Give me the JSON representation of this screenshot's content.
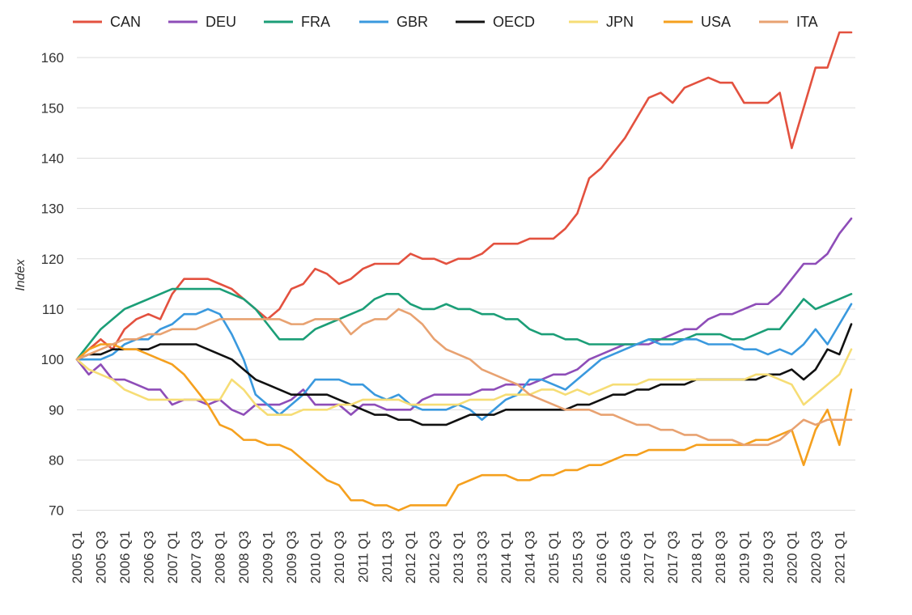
{
  "chart_data": {
    "type": "line",
    "title": "",
    "xlabel": "",
    "ylabel": "Index",
    "ylim": [
      68.5,
      165
    ],
    "yticks": [
      70,
      80,
      90,
      100,
      110,
      120,
      130,
      140,
      150,
      160
    ],
    "grid": "horizontal",
    "legend": "top",
    "x": [
      "2005 Q1",
      "2005 Q2",
      "2005 Q3",
      "2005 Q4",
      "2006 Q1",
      "2006 Q2",
      "2006 Q3",
      "2006 Q4",
      "2007 Q1",
      "2007 Q2",
      "2007 Q3",
      "2007 Q4",
      "2008 Q1",
      "2008 Q2",
      "2008 Q3",
      "2008 Q4",
      "2009 Q1",
      "2009 Q2",
      "2009 Q3",
      "2009 Q4",
      "2010 Q1",
      "2010 Q2",
      "2010 Q3",
      "2010 Q4",
      "2011 Q1",
      "2011 Q2",
      "2011 Q3",
      "2011 Q4",
      "2012 Q1",
      "2012 Q2",
      "2012 Q3",
      "2012 Q4",
      "2013 Q1",
      "2013 Q2",
      "2013 Q3",
      "2013 Q4",
      "2014 Q1",
      "2014 Q2",
      "2014 Q3",
      "2014 Q4",
      "2015 Q1",
      "2015 Q2",
      "2015 Q3",
      "2015 Q4",
      "2016 Q1",
      "2016 Q2",
      "2016 Q3",
      "2016 Q4",
      "2017 Q1",
      "2017 Q2",
      "2017 Q3",
      "2017 Q4",
      "2018 Q1",
      "2018 Q2",
      "2018 Q3",
      "2018 Q4",
      "2019 Q1",
      "2019 Q2",
      "2019 Q3",
      "2019 Q4",
      "2020 Q1",
      "2020 Q2",
      "2020 Q3",
      "2020 Q4",
      "2021 Q1",
      "2021 Q2"
    ],
    "tick_labels": [
      "2005 Q1",
      "2005 Q3",
      "2006 Q1",
      "2006 Q3",
      "2007 Q1",
      "2007 Q3",
      "2008 Q1",
      "2008 Q3",
      "2009 Q1",
      "2009 Q3",
      "2010 Q1",
      "2010 Q3",
      "2011 Q1",
      "2011 Q3",
      "2012 Q1",
      "2012 Q3",
      "2013 Q1",
      "2013 Q3",
      "2014 Q1",
      "2014 Q3",
      "2015 Q1",
      "2015 Q3",
      "2016 Q1",
      "2016 Q3",
      "2017 Q1",
      "2017 Q3",
      "2018 Q1",
      "2018 Q3",
      "2019 Q1",
      "2019 Q3",
      "2020 Q1",
      "2020 Q3",
      "2021 Q1"
    ],
    "series": [
      {
        "name": "CAN",
        "color": "#e3513f",
        "values": [
          100,
          102,
          104,
          102,
          106,
          108,
          109,
          108,
          113,
          116,
          116,
          116,
          115,
          114,
          112,
          110,
          108,
          110,
          114,
          115,
          118,
          117,
          115,
          116,
          118,
          119,
          119,
          119,
          121,
          120,
          120,
          119,
          120,
          120,
          121,
          123,
          123,
          123,
          124,
          124,
          124,
          126,
          129,
          136,
          138,
          141,
          144,
          148,
          152,
          153,
          151,
          154,
          155,
          156,
          155,
          155,
          151,
          151,
          151,
          153,
          142,
          150,
          158,
          158,
          165,
          165
        ]
      },
      {
        "name": "DEU",
        "color": "#8e4db8",
        "values": [
          100,
          97,
          99,
          96,
          96,
          95,
          94,
          94,
          91,
          92,
          92,
          91,
          92,
          90,
          89,
          91,
          91,
          91,
          92,
          94,
          91,
          91,
          91,
          89,
          91,
          91,
          90,
          90,
          90,
          92,
          93,
          93,
          93,
          93,
          94,
          94,
          95,
          95,
          95,
          96,
          97,
          97,
          98,
          100,
          101,
          102,
          103,
          103,
          103,
          104,
          105,
          106,
          106,
          108,
          109,
          109,
          110,
          111,
          111,
          113,
          116,
          119,
          119,
          121,
          125,
          128
        ]
      },
      {
        "name": "FRA",
        "color": "#1b9e77",
        "values": [
          100,
          103,
          106,
          108,
          110,
          111,
          112,
          113,
          114,
          114,
          114,
          114,
          114,
          113,
          112,
          110,
          107,
          104,
          104,
          104,
          106,
          107,
          108,
          109,
          110,
          112,
          113,
          113,
          111,
          110,
          110,
          111,
          110,
          110,
          109,
          109,
          108,
          108,
          106,
          105,
          105,
          104,
          104,
          103,
          103,
          103,
          103,
          103,
          104,
          104,
          104,
          104,
          105,
          105,
          105,
          104,
          104,
          105,
          106,
          106,
          109,
          112,
          110,
          111,
          112,
          113
        ]
      },
      {
        "name": "GBR",
        "color": "#3a99de",
        "values": [
          100,
          100,
          100,
          101,
          103,
          104,
          104,
          106,
          107,
          109,
          109,
          110,
          109,
          105,
          100,
          93,
          91,
          89,
          91,
          93,
          96,
          96,
          96,
          95,
          95,
          93,
          92,
          93,
          91,
          90,
          90,
          90,
          91,
          90,
          88,
          90,
          92,
          93,
          96,
          96,
          95,
          94,
          96,
          98,
          100,
          101,
          102,
          103,
          104,
          103,
          103,
          104,
          104,
          103,
          103,
          103,
          102,
          102,
          101,
          102,
          101,
          103,
          106,
          103,
          107,
          111
        ]
      },
      {
        "name": "OECD",
        "color": "#111111",
        "values": [
          100,
          101,
          101,
          102,
          102,
          102,
          102,
          103,
          103,
          103,
          103,
          102,
          101,
          100,
          98,
          96,
          95,
          94,
          93,
          93,
          93,
          93,
          92,
          91,
          90,
          89,
          89,
          88,
          88,
          87,
          87,
          87,
          88,
          89,
          89,
          89,
          90,
          90,
          90,
          90,
          90,
          90,
          91,
          91,
          92,
          93,
          93,
          94,
          94,
          95,
          95,
          95,
          96,
          96,
          96,
          96,
          96,
          96,
          97,
          97,
          98,
          96,
          98,
          102,
          101,
          107
        ]
      },
      {
        "name": "JPN",
        "color": "#f6dd75",
        "values": [
          100,
          98,
          97,
          96,
          94,
          93,
          92,
          92,
          92,
          92,
          92,
          92,
          92,
          96,
          94,
          91,
          89,
          89,
          89,
          90,
          90,
          90,
          91,
          91,
          92,
          92,
          92,
          92,
          91,
          91,
          91,
          91,
          91,
          92,
          92,
          92,
          93,
          93,
          93,
          94,
          94,
          93,
          94,
          93,
          94,
          95,
          95,
          95,
          96,
          96,
          96,
          96,
          96,
          96,
          96,
          96,
          96,
          97,
          97,
          96,
          95,
          91,
          93,
          95,
          97,
          102
        ]
      },
      {
        "name": "USA",
        "color": "#f5a01e",
        "values": [
          100,
          102,
          103,
          103,
          102,
          102,
          101,
          100,
          99,
          97,
          94,
          91,
          87,
          86,
          84,
          84,
          83,
          83,
          82,
          80,
          78,
          76,
          75,
          72,
          72,
          71,
          71,
          70,
          71,
          71,
          71,
          71,
          75,
          76,
          77,
          77,
          77,
          76,
          76,
          77,
          77,
          78,
          78,
          79,
          79,
          80,
          81,
          81,
          82,
          82,
          82,
          82,
          83,
          83,
          83,
          83,
          83,
          84,
          84,
          85,
          86,
          79,
          86,
          90,
          83,
          94
        ]
      },
      {
        "name": "ITA",
        "color": "#e8a271",
        "values": [
          100,
          101,
          102,
          103,
          104,
          104,
          105,
          105,
          106,
          106,
          106,
          107,
          108,
          108,
          108,
          108,
          108,
          108,
          107,
          107,
          108,
          108,
          108,
          105,
          107,
          108,
          108,
          110,
          109,
          107,
          104,
          102,
          101,
          100,
          98,
          97,
          96,
          95,
          93,
          92,
          91,
          90,
          90,
          90,
          89,
          89,
          88,
          87,
          87,
          86,
          86,
          85,
          85,
          84,
          84,
          84,
          83,
          83,
          83,
          84,
          86,
          88,
          87,
          88,
          88,
          88
        ]
      }
    ]
  }
}
